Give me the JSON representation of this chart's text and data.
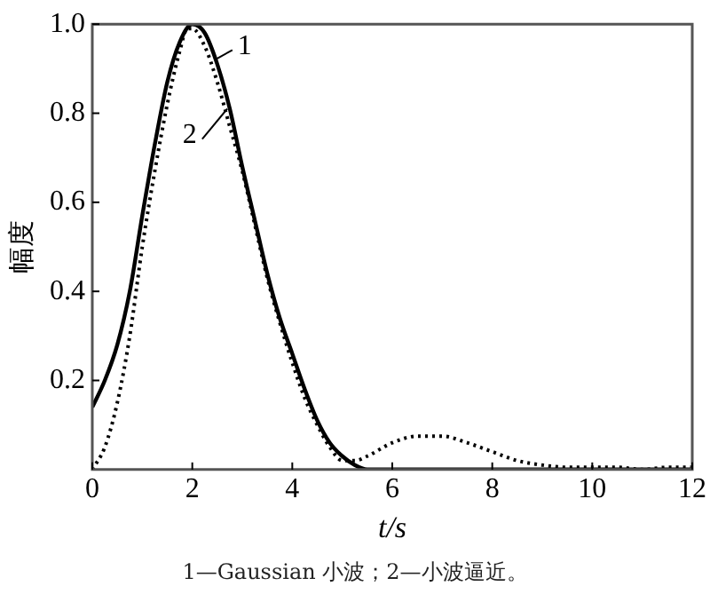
{
  "chart_data": {
    "type": "line",
    "xlabel": "t/s",
    "ylabel": "幅度",
    "xlim": [
      0,
      12
    ],
    "xticks": [
      0,
      2,
      4,
      6,
      8,
      10,
      12
    ],
    "ylim": [
      0,
      1
    ],
    "yticks": [
      0.2,
      0.4,
      0.6,
      {
        "value": 0.8,
        "label": "0.8"
      },
      {
        "value": 1,
        "label": "1.0"
      }
    ],
    "grid": false,
    "marker": "none",
    "series": [
      {
        "name": "1",
        "color": "#000000",
        "line_style": "solid",
        "x": [
          0,
          0.25,
          0.5,
          0.75,
          1,
          1.25,
          1.5,
          1.75,
          2,
          2.25,
          2.5,
          2.75,
          3,
          3.25,
          3.5,
          3.75,
          4,
          4.25,
          4.5,
          4.75,
          5,
          5.25,
          5.5,
          6,
          8,
          10,
          12
        ],
        "values": [
          0.14,
          0.2,
          0.28,
          0.4,
          0.57,
          0.73,
          0.87,
          0.96,
          1,
          0.98,
          0.91,
          0.81,
          0.68,
          0.56,
          0.44,
          0.34,
          0.26,
          0.18,
          0.11,
          0.06,
          0.03,
          0.01,
          0,
          0,
          0,
          0,
          0
        ]
      },
      {
        "name": "2",
        "color": "#000000",
        "line_style": "dotted",
        "x": [
          0,
          0.25,
          0.5,
          0.75,
          1,
          1.25,
          1.5,
          1.75,
          1.9,
          2,
          2.25,
          2.5,
          2.75,
          3,
          3.25,
          3.5,
          3.75,
          4,
          4.25,
          4.5,
          4.75,
          5,
          5.25,
          5.5,
          6,
          6.5,
          7,
          7.5,
          8,
          8.5,
          9,
          9.5,
          10,
          10.5,
          11,
          11.5,
          12
        ],
        "values": [
          0,
          0.05,
          0.15,
          0.3,
          0.5,
          0.67,
          0.82,
          0.94,
          0.99,
          0.99,
          0.95,
          0.87,
          0.77,
          0.67,
          0.55,
          0.43,
          0.33,
          0.24,
          0.16,
          0.1,
          0.05,
          0.02,
          0.02,
          0.03,
          0.06,
          0.075,
          0.075,
          0.06,
          0.04,
          0.02,
          0.01,
          0.005,
          0.005,
          0.005,
          0,
          0.005,
          0.005
        ]
      }
    ],
    "annotations": [
      "1—Gaussian 小波；2—小波逼近。"
    ]
  }
}
